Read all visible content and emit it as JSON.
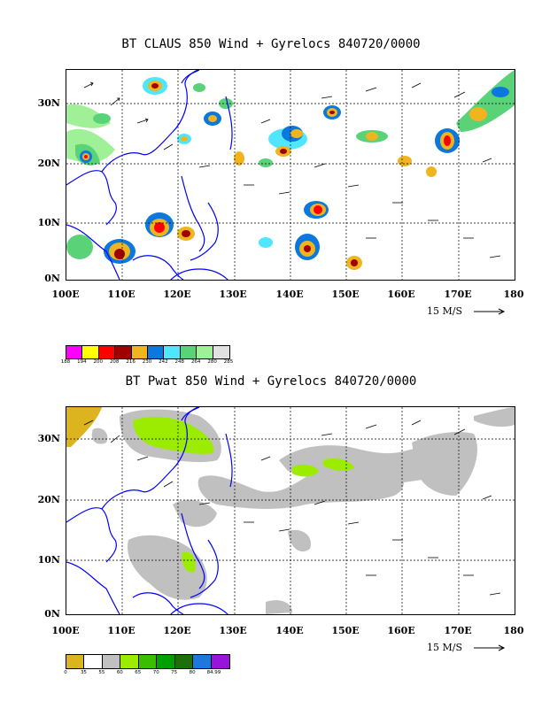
{
  "panels": [
    {
      "title": "BT CLAUS 850 Wind + Gyrelocs 840720/0000",
      "lat_labels": [
        "30N",
        "20N",
        "10N",
        "0N"
      ],
      "lon_labels": [
        "100E",
        "110E",
        "120E",
        "130E",
        "140E",
        "150E",
        "160E",
        "170E",
        "180"
      ],
      "scale_label": "15 M/S",
      "colorbar": {
        "colors": [
          "#ff00ff",
          "#ffff00",
          "#ff0000",
          "#a00000",
          "#f0b41e",
          "#0a78dc",
          "#50e6ff",
          "#5ad278",
          "#9ff096",
          "#e1e1e1"
        ],
        "labels": [
          "188",
          "194",
          "200",
          "208",
          "216",
          "230",
          "242",
          "248",
          "264",
          "280",
          "285"
        ]
      }
    },
    {
      "title": "BT Pwat 850 Wind + Gyrelocs 840720/0000",
      "lat_labels": [
        "30N",
        "20N",
        "10N",
        "0N"
      ],
      "lon_labels": [
        "100E",
        "110E",
        "120E",
        "130E",
        "140E",
        "150E",
        "160E",
        "170E",
        "180"
      ],
      "scale_label": "15 M/S",
      "colorbar": {
        "colors": [
          "#dcb41e",
          "#ffffff",
          "#c0c0c0",
          "#9bec00",
          "#3cbe00",
          "#00a000",
          "#1e6e0a",
          "#1e78dc",
          "#9614dc"
        ],
        "labels": [
          "0",
          "35",
          "55",
          "60",
          "65",
          "70",
          "75",
          "80",
          "84.99"
        ]
      }
    }
  ],
  "colors": {
    "coast": "#0000ff",
    "grid": "#000000"
  }
}
